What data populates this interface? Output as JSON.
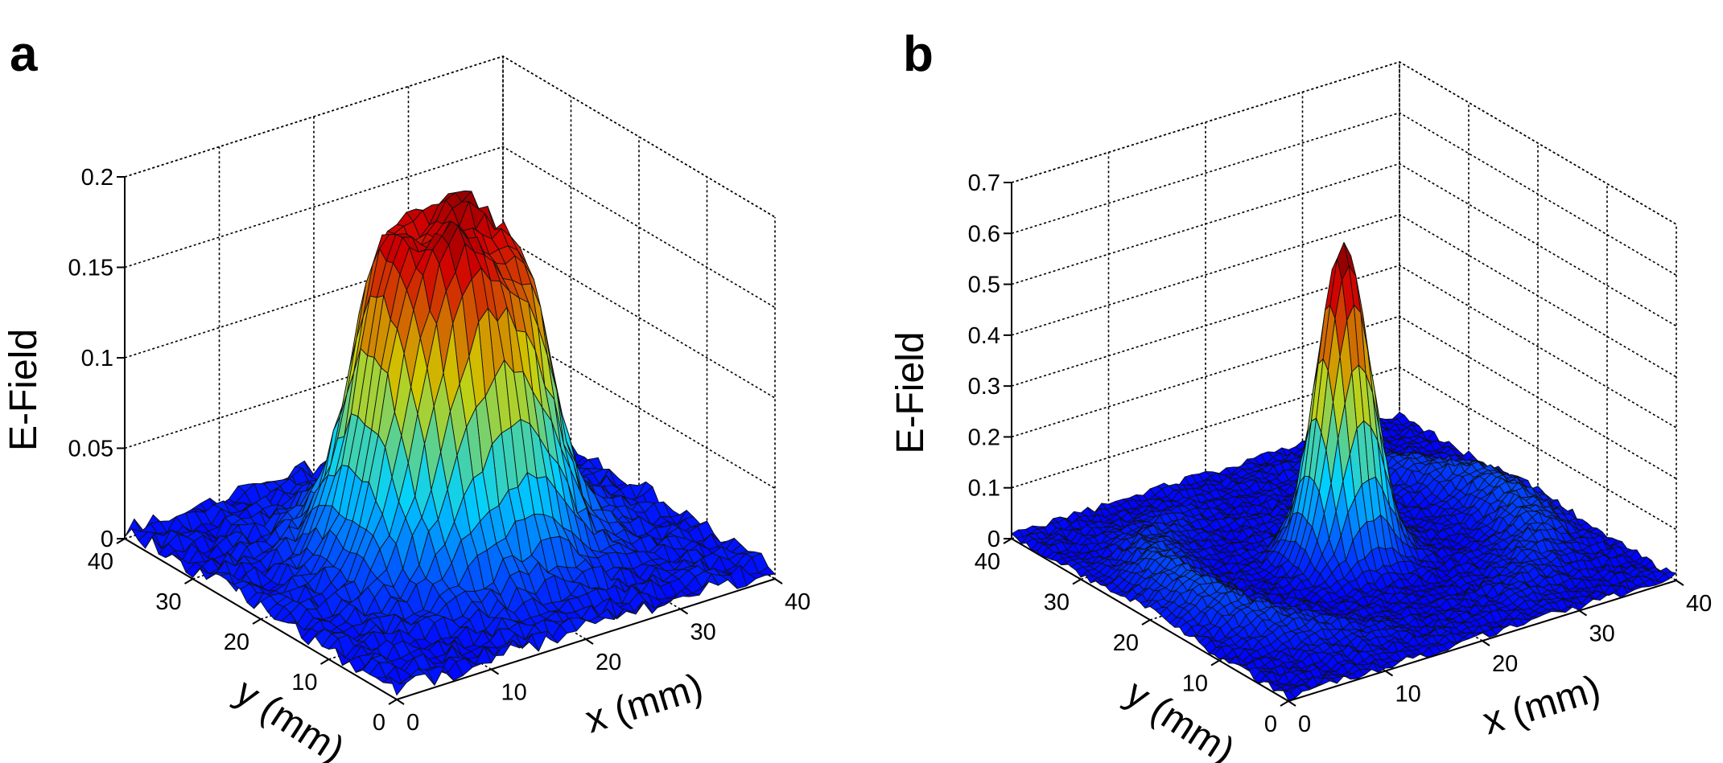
{
  "chart_data": [
    {
      "panel_label": "a",
      "type": "surface",
      "zlabel": "E-Field",
      "xlabel": "x (mm)",
      "ylabel": "y (mm)",
      "xlim": [
        0,
        40
      ],
      "ylim": [
        0,
        40
      ],
      "zlim": [
        0,
        0.2
      ],
      "x_ticks": [
        "0",
        "10",
        "20",
        "30",
        "40"
      ],
      "y_ticks": [
        "0",
        "10",
        "20",
        "30",
        "40"
      ],
      "z_ticks": [
        "0",
        "0.05",
        "0.1",
        "0.15",
        "0.2"
      ],
      "grid": true,
      "colormap": "jet",
      "surface_features": [
        {
          "shape": "flat-top plateau",
          "center_x": 20,
          "center_y": 20,
          "radius_mm": 9,
          "peak": 0.19
        }
      ],
      "noise_floor": 0.005
    },
    {
      "panel_label": "b",
      "type": "surface",
      "zlabel": "E-Field",
      "xlabel": "x (mm)",
      "ylabel": "y (mm)",
      "xlim": [
        0,
        40
      ],
      "ylim": [
        0,
        40
      ],
      "zlim": [
        0,
        0.7
      ],
      "x_ticks": [
        "0",
        "10",
        "20",
        "30",
        "40"
      ],
      "y_ticks": [
        "0",
        "10",
        "20",
        "30",
        "40"
      ],
      "z_ticks": [
        "0",
        "0.1",
        "0.2",
        "0.3",
        "0.4",
        "0.5",
        "0.6",
        "0.7"
      ],
      "grid": true,
      "colormap": "jet",
      "surface_features": [
        {
          "shape": "sharp peak",
          "center_x": 20,
          "center_y": 20,
          "width_mm": 2.3,
          "peak": 0.61
        },
        {
          "shape": "ring ridge",
          "center_x": 20,
          "center_y": 20,
          "radius_mm": 16,
          "height": 0.06
        }
      ],
      "noise_floor": 0.008
    }
  ]
}
